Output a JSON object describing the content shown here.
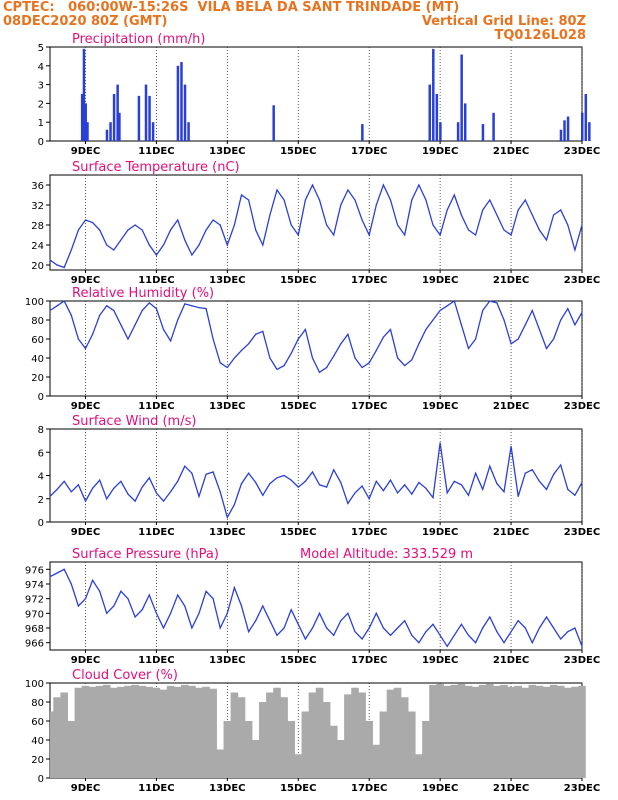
{
  "header": {
    "line1_left": "CPTEC:   060:00W-15:26S  VILA BELA DA SANT TRINDADE (MT)",
    "line2_left": "08DEC2020 80Z (GMT)",
    "line2_right": "Vertical Grid Line: 80Z",
    "line3_right": "TQ0126L028"
  },
  "colors": {
    "header": "#e8731f",
    "title": "#e0107a",
    "line": "#2a3fd8",
    "bars": "#2a3fd8",
    "cloud": "#aaaaaa",
    "grid": "#333333"
  },
  "x_tick_labels": [
    "9DEC",
    "11DEC",
    "13DEC",
    "15DEC",
    "17DEC",
    "19DEC",
    "21DEC",
    "23DEC"
  ],
  "model_altitude": "Model Altitude: 333.529 m",
  "chart_data": [
    {
      "type": "bar",
      "title": "Precipitation (mm/h)",
      "ylim": [
        0,
        5
      ],
      "yticks": [
        0,
        1,
        2,
        3,
        4,
        5
      ],
      "x_unit": "day of December 2020",
      "x": [
        8.9,
        8.95,
        9.0,
        9.05,
        9.6,
        9.7,
        9.8,
        9.9,
        9.95,
        10.5,
        10.7,
        10.8,
        10.9,
        11.6,
        11.7,
        11.8,
        11.9,
        14.3,
        16.8,
        18.7,
        18.8,
        18.9,
        19.0,
        19.5,
        19.6,
        19.7,
        20.2,
        20.5,
        22.4,
        22.5,
        22.6,
        23.0,
        23.1,
        23.2
      ],
      "values": [
        2.5,
        4.9,
        2.0,
        1.0,
        0.6,
        1.0,
        2.5,
        3.0,
        1.5,
        2.4,
        3.0,
        2.4,
        1.0,
        4.0,
        4.2,
        3.0,
        1.0,
        1.9,
        0.9,
        3.0,
        4.9,
        2.5,
        1.0,
        1.0,
        4.6,
        2.0,
        0.9,
        1.5,
        0.6,
        1.1,
        1.3,
        1.5,
        2.5,
        1.0
      ]
    },
    {
      "type": "line",
      "title": "Surface Temperature (nC)",
      "ylim": [
        19,
        38
      ],
      "yticks": [
        20,
        24,
        28,
        32,
        36
      ],
      "x_unit": "day of December 2020",
      "x": [
        8.0,
        8.2,
        8.4,
        8.6,
        8.8,
        9.0,
        9.2,
        9.4,
        9.6,
        9.8,
        10.0,
        10.2,
        10.4,
        10.6,
        10.8,
        11.0,
        11.2,
        11.4,
        11.6,
        11.8,
        12.0,
        12.2,
        12.4,
        12.6,
        12.8,
        13.0,
        13.2,
        13.4,
        13.6,
        13.8,
        14.0,
        14.2,
        14.4,
        14.6,
        14.8,
        15.0,
        15.2,
        15.4,
        15.6,
        15.8,
        16.0,
        16.2,
        16.4,
        16.6,
        16.8,
        17.0,
        17.2,
        17.4,
        17.6,
        17.8,
        18.0,
        18.2,
        18.4,
        18.6,
        18.8,
        19.0,
        19.2,
        19.4,
        19.6,
        19.8,
        20.0,
        20.2,
        20.4,
        20.6,
        20.8,
        21.0,
        21.2,
        21.4,
        21.6,
        21.8,
        22.0,
        22.2,
        22.4,
        22.6,
        22.8,
        23.0
      ],
      "values": [
        21,
        20,
        19.5,
        23,
        27,
        29,
        28.5,
        27,
        24,
        23,
        25,
        27,
        28,
        27,
        24,
        22,
        24,
        27,
        29,
        25,
        22,
        24,
        27,
        29,
        28,
        24,
        28,
        34,
        33,
        27,
        24,
        30,
        35,
        33,
        28,
        26,
        33,
        36,
        33,
        28,
        26,
        32,
        35,
        33,
        29,
        26,
        32,
        36,
        33,
        28,
        26,
        33,
        36,
        33,
        28,
        26,
        31,
        34,
        30,
        27,
        26,
        31,
        33,
        30,
        27,
        26,
        31,
        33,
        30,
        27,
        25,
        30,
        31,
        28,
        23,
        28
      ]
    },
    {
      "type": "line",
      "title": "Relative Humidity (%)",
      "ylim": [
        0,
        100
      ],
      "yticks": [
        0,
        20,
        40,
        60,
        80,
        100
      ],
      "x_unit": "day of December 2020",
      "x": [
        8.0,
        8.2,
        8.4,
        8.6,
        8.8,
        9.0,
        9.2,
        9.4,
        9.6,
        9.8,
        10.0,
        10.2,
        10.4,
        10.6,
        10.8,
        11.0,
        11.2,
        11.4,
        11.6,
        11.8,
        12.0,
        12.2,
        12.4,
        12.6,
        12.8,
        13.0,
        13.2,
        13.4,
        13.6,
        13.8,
        14.0,
        14.2,
        14.4,
        14.6,
        14.8,
        15.0,
        15.2,
        15.4,
        15.6,
        15.8,
        16.0,
        16.2,
        16.4,
        16.6,
        16.8,
        17.0,
        17.2,
        17.4,
        17.6,
        17.8,
        18.0,
        18.2,
        18.4,
        18.6,
        18.8,
        19.0,
        19.2,
        19.4,
        19.6,
        19.8,
        20.0,
        20.2,
        20.4,
        20.6,
        20.8,
        21.0,
        21.2,
        21.4,
        21.6,
        21.8,
        22.0,
        22.2,
        22.4,
        22.6,
        22.8,
        23.0
      ],
      "values": [
        90,
        95,
        100,
        85,
        60,
        50,
        65,
        85,
        95,
        90,
        75,
        60,
        75,
        90,
        98,
        92,
        70,
        58,
        80,
        97,
        95,
        93,
        92,
        60,
        35,
        30,
        40,
        48,
        55,
        65,
        68,
        40,
        28,
        32,
        45,
        60,
        70,
        40,
        25,
        30,
        42,
        55,
        65,
        40,
        30,
        35,
        48,
        62,
        70,
        40,
        32,
        38,
        55,
        70,
        80,
        90,
        95,
        100,
        75,
        50,
        60,
        90,
        100,
        98,
        80,
        55,
        60,
        75,
        90,
        70,
        50,
        60,
        80,
        92,
        75,
        88
      ]
    },
    {
      "type": "line",
      "title": "Surface Wind (m/s)",
      "ylim": [
        0,
        8
      ],
      "yticks": [
        0,
        2,
        4,
        6,
        8
      ],
      "x_unit": "day of December 2020",
      "x": [
        8.0,
        8.2,
        8.4,
        8.6,
        8.8,
        9.0,
        9.2,
        9.4,
        9.6,
        9.8,
        10.0,
        10.2,
        10.4,
        10.6,
        10.8,
        11.0,
        11.2,
        11.4,
        11.6,
        11.8,
        12.0,
        12.2,
        12.4,
        12.6,
        12.8,
        13.0,
        13.2,
        13.4,
        13.6,
        13.8,
        14.0,
        14.2,
        14.4,
        14.6,
        14.8,
        15.0,
        15.2,
        15.4,
        15.6,
        15.8,
        16.0,
        16.2,
        16.4,
        16.6,
        16.8,
        17.0,
        17.2,
        17.4,
        17.6,
        17.8,
        18.0,
        18.2,
        18.4,
        18.6,
        18.8,
        19.0,
        19.2,
        19.4,
        19.6,
        19.8,
        20.0,
        20.2,
        20.4,
        20.6,
        20.8,
        21.0,
        21.2,
        21.4,
        21.6,
        21.8,
        22.0,
        22.2,
        22.4,
        22.6,
        22.8,
        23.0
      ],
      "values": [
        2.2,
        2.8,
        3.5,
        2.6,
        3.2,
        1.8,
        2.9,
        3.6,
        2.0,
        2.9,
        3.5,
        2.4,
        1.8,
        3.0,
        3.8,
        2.5,
        1.8,
        2.6,
        3.5,
        4.8,
        4.2,
        2.2,
        4.1,
        4.3,
        2.6,
        0.4,
        1.5,
        3.3,
        4.2,
        3.4,
        2.3,
        3.3,
        3.8,
        4.0,
        3.6,
        3.0,
        3.5,
        4.3,
        3.2,
        3.0,
        4.5,
        3.4,
        1.6,
        2.5,
        3.1,
        2.0,
        3.5,
        2.7,
        3.6,
        2.5,
        3.2,
        2.4,
        3.4,
        2.9,
        2.1,
        6.8,
        2.5,
        3.5,
        3.2,
        2.3,
        4.2,
        2.8,
        4.8,
        3.3,
        2.6,
        6.5,
        2.2,
        4.2,
        4.5,
        3.5,
        2.8,
        4.1,
        4.9,
        2.8,
        2.3,
        3.4
      ]
    },
    {
      "type": "line",
      "title": "Surface Pressure (hPa)",
      "ylim": [
        965,
        977
      ],
      "yticks": [
        966,
        968,
        970,
        972,
        974,
        976
      ],
      "x_unit": "day of December 2020",
      "x": [
        8.0,
        8.2,
        8.4,
        8.6,
        8.8,
        9.0,
        9.2,
        9.4,
        9.6,
        9.8,
        10.0,
        10.2,
        10.4,
        10.6,
        10.8,
        11.0,
        11.2,
        11.4,
        11.6,
        11.8,
        12.0,
        12.2,
        12.4,
        12.6,
        12.8,
        13.0,
        13.2,
        13.4,
        13.6,
        13.8,
        14.0,
        14.2,
        14.4,
        14.6,
        14.8,
        15.0,
        15.2,
        15.4,
        15.6,
        15.8,
        16.0,
        16.2,
        16.4,
        16.6,
        16.8,
        17.0,
        17.2,
        17.4,
        17.6,
        17.8,
        18.0,
        18.2,
        18.4,
        18.6,
        18.8,
        19.0,
        19.2,
        19.4,
        19.6,
        19.8,
        20.0,
        20.2,
        20.4,
        20.6,
        20.8,
        21.0,
        21.2,
        21.4,
        21.6,
        21.8,
        22.0,
        22.2,
        22.4,
        22.6,
        22.8,
        23.0
      ],
      "values": [
        975,
        975.5,
        976,
        974,
        971,
        972,
        974.5,
        973,
        970,
        971,
        973,
        972,
        969.5,
        970.5,
        972.5,
        970,
        968,
        970,
        972.5,
        971,
        968,
        970,
        973,
        972,
        968,
        970,
        973.5,
        971,
        967.5,
        969,
        971,
        969,
        967,
        968,
        970.5,
        968.5,
        966.5,
        968,
        970,
        968,
        967,
        969,
        970,
        967.5,
        966.5,
        968,
        970,
        968,
        967,
        968,
        969,
        967,
        966,
        967.5,
        968.5,
        967,
        965.5,
        967,
        968.5,
        967,
        966,
        968,
        969.5,
        967.5,
        966,
        967.5,
        969,
        968,
        966,
        968,
        969.5,
        968,
        966.5,
        967.5,
        968,
        965.5
      ]
    },
    {
      "type": "area",
      "title": "Cloud Cover (%)",
      "ylim": [
        0,
        100
      ],
      "yticks": [
        0,
        20,
        40,
        60,
        80,
        100
      ],
      "x_unit": "day of December 2020",
      "x": [
        8.0,
        8.2,
        8.4,
        8.6,
        8.8,
        9.0,
        9.2,
        9.4,
        9.6,
        9.8,
        10.0,
        10.2,
        10.4,
        10.6,
        10.8,
        11.0,
        11.2,
        11.4,
        11.6,
        11.8,
        12.0,
        12.2,
        12.4,
        12.6,
        12.8,
        13.0,
        13.2,
        13.4,
        13.6,
        13.8,
        14.0,
        14.2,
        14.4,
        14.6,
        14.8,
        15.0,
        15.2,
        15.4,
        15.6,
        15.8,
        16.0,
        16.2,
        16.4,
        16.6,
        16.8,
        17.0,
        17.2,
        17.4,
        17.6,
        17.8,
        18.0,
        18.2,
        18.4,
        18.6,
        18.8,
        19.0,
        19.2,
        19.4,
        19.6,
        19.8,
        20.0,
        20.2,
        20.4,
        20.6,
        20.8,
        21.0,
        21.2,
        21.4,
        21.6,
        21.8,
        22.0,
        22.2,
        22.4,
        22.6,
        22.8,
        23.0
      ],
      "values": [
        70,
        85,
        90,
        60,
        95,
        97,
        96,
        97,
        98,
        95,
        96,
        97,
        98,
        97,
        96,
        95,
        93,
        97,
        96,
        98,
        97,
        95,
        96,
        94,
        30,
        60,
        90,
        85,
        60,
        40,
        80,
        90,
        95,
        85,
        60,
        25,
        70,
        90,
        95,
        80,
        55,
        40,
        88,
        95,
        90,
        60,
        35,
        70,
        93,
        95,
        85,
        70,
        25,
        60,
        98,
        99,
        97,
        98,
        99,
        97,
        96,
        98,
        99,
        97,
        98,
        96,
        97,
        95,
        98,
        97,
        96,
        98,
        97,
        95,
        96,
        97
      ]
    }
  ]
}
